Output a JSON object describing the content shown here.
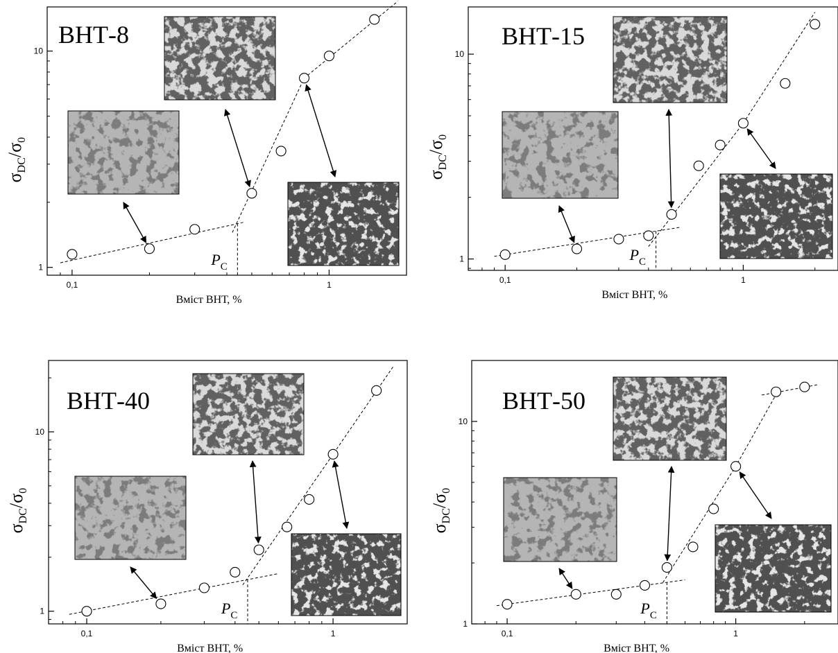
{
  "chart_data": [
    {
      "type": "scatter",
      "title": "ВНТ-8",
      "xlabel": "Вміст ВНТ, %",
      "ylabel_main": "σ",
      "ylabel_sub": "DC",
      "ylabel_main2": "/σ",
      "ylabel_sub2": "0",
      "xscale": "log",
      "yscale": "log",
      "xlim": [
        0.08,
        2.0
      ],
      "ylim": [
        0.92,
        16
      ],
      "xticks": [
        {
          "v": 0.1,
          "label": "0,1"
        },
        {
          "v": 1,
          "label": "1"
        }
      ],
      "yticks": [
        {
          "v": 1,
          "label": "1"
        },
        {
          "v": 10,
          "label": "10"
        }
      ],
      "x": [
        0.1,
        0.2,
        0.3,
        0.5,
        0.65,
        0.8,
        1.0,
        1.5
      ],
      "y": [
        1.15,
        1.22,
        1.5,
        2.2,
        3.45,
        7.5,
        9.5,
        14
      ],
      "fit_lines": [
        {
          "x": [
            0.09,
            0.47
          ],
          "y": [
            1.05,
            1.62
          ]
        },
        {
          "x": [
            0.42,
            0.8,
            1.85
          ],
          "y": [
            1.45,
            7.5,
            17
          ]
        }
      ],
      "pc_label": "P",
      "pc_sub": "C",
      "pc_x": 0.44
    },
    {
      "type": "scatter",
      "title": "ВНТ-15",
      "xlabel": "Вміст ВНТ, %",
      "ylabel_main": "σ",
      "ylabel_sub": "DC",
      "ylabel_main2": "/σ",
      "ylabel_sub2": "0",
      "xscale": "log",
      "yscale": "log",
      "xlim": [
        0.07,
        2.5
      ],
      "ylim": [
        0.88,
        17
      ],
      "xticks": [
        {
          "v": 0.1,
          "label": "0,1"
        },
        {
          "v": 1,
          "label": "1"
        }
      ],
      "yticks": [
        {
          "v": 1,
          "label": "1"
        },
        {
          "v": 10,
          "label": "10"
        }
      ],
      "x": [
        0.1,
        0.2,
        0.3,
        0.4,
        0.5,
        0.65,
        0.8,
        1.0,
        1.5,
        2.0
      ],
      "y": [
        1.05,
        1.12,
        1.25,
        1.3,
        1.65,
        2.85,
        3.6,
        4.6,
        7.2,
        14
      ],
      "fit_lines": [
        {
          "x": [
            0.09,
            0.55
          ],
          "y": [
            1.03,
            1.43
          ]
        },
        {
          "x": [
            0.4,
            1.0,
            2.0
          ],
          "y": [
            1.15,
            4.6,
            16
          ]
        }
      ],
      "pc_label": "P",
      "pc_sub": "C",
      "pc_x": 0.43
    },
    {
      "type": "scatter",
      "title": "ВНТ-40",
      "xlabel": "Вміст ВНТ, %",
      "ylabel_main": "σ",
      "ylabel_sub": "DC",
      "ylabel_main2": "/σ",
      "ylabel_sub2": "0",
      "xscale": "log",
      "yscale": "log",
      "xlim": [
        0.07,
        2.0
      ],
      "ylim": [
        0.85,
        25
      ],
      "xticks": [
        {
          "v": 0.1,
          "label": "0,1"
        },
        {
          "v": 1,
          "label": "1"
        }
      ],
      "yticks": [
        {
          "v": 1,
          "label": "1"
        },
        {
          "v": 10,
          "label": "10"
        }
      ],
      "x": [
        0.1,
        0.2,
        0.3,
        0.4,
        0.5,
        0.65,
        0.8,
        1.0,
        1.5
      ],
      "y": [
        1.0,
        1.1,
        1.35,
        1.65,
        2.2,
        2.95,
        4.2,
        7.5,
        17
      ],
      "fit_lines": [
        {
          "x": [
            0.085,
            0.6
          ],
          "y": [
            0.96,
            1.62
          ]
        },
        {
          "x": [
            0.43,
            1.0,
            1.75
          ],
          "y": [
            1.4,
            7.5,
            23
          ]
        }
      ],
      "pc_label": "P",
      "pc_sub": "C",
      "pc_x": 0.45
    },
    {
      "type": "scatter",
      "title": "ВНТ-50",
      "xlabel": "Вміст ВНТ, %",
      "ylabel_main": "σ",
      "ylabel_sub": "DC",
      "ylabel_main2": "/σ",
      "ylabel_sub2": "0",
      "xscale": "log",
      "yscale": "log",
      "xlim": [
        0.07,
        2.8
      ],
      "ylim": [
        1.0,
        20
      ],
      "xticks": [
        {
          "v": 0.1,
          "label": "0,1"
        },
        {
          "v": 1,
          "label": "1"
        }
      ],
      "yticks": [
        {
          "v": 1,
          "label": "1"
        },
        {
          "v": 10,
          "label": "10"
        }
      ],
      "x": [
        0.1,
        0.2,
        0.3,
        0.4,
        0.5,
        0.65,
        0.8,
        1.0,
        1.5,
        2.0
      ],
      "y": [
        1.25,
        1.4,
        1.4,
        1.55,
        1.9,
        2.4,
        3.7,
        6.0,
        14,
        14.8
      ],
      "fit_lines": [
        {
          "x": [
            0.09,
            0.6
          ],
          "y": [
            1.23,
            1.65
          ]
        },
        {
          "x": [
            0.48,
            1.0,
            1.55
          ],
          "y": [
            1.6,
            6.0,
            14.5
          ]
        },
        {
          "x": [
            1.3,
            2.3
          ],
          "y": [
            13.5,
            15.2
          ]
        }
      ],
      "pc_label": "P",
      "pc_sub": "C",
      "pc_x": 0.5
    }
  ]
}
